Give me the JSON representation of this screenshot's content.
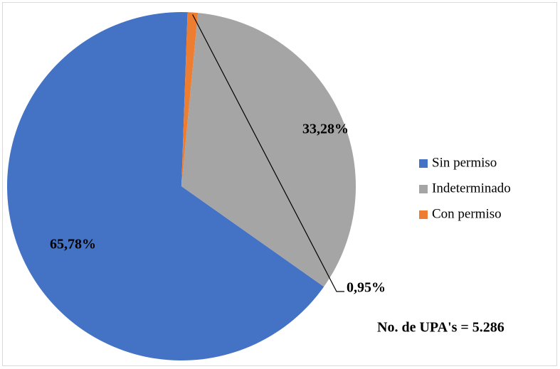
{
  "chart_data": {
    "type": "pie",
    "series": [
      {
        "name": "Sin permiso",
        "color": "#4472c4",
        "values": [
          65.78
        ],
        "value_labels": [
          "65,78%"
        ]
      },
      {
        "name": "Indeterminado",
        "color": "#a5a5a5",
        "values": [
          33.28
        ],
        "value_labels": [
          "33,28%"
        ]
      },
      {
        "name": "Con permiso",
        "color": "#ed7d31",
        "values": [
          0.95
        ],
        "value_labels": [
          "0,95%"
        ]
      }
    ],
    "annotation": "No. de UPA's = 5.286",
    "legend": "right"
  }
}
